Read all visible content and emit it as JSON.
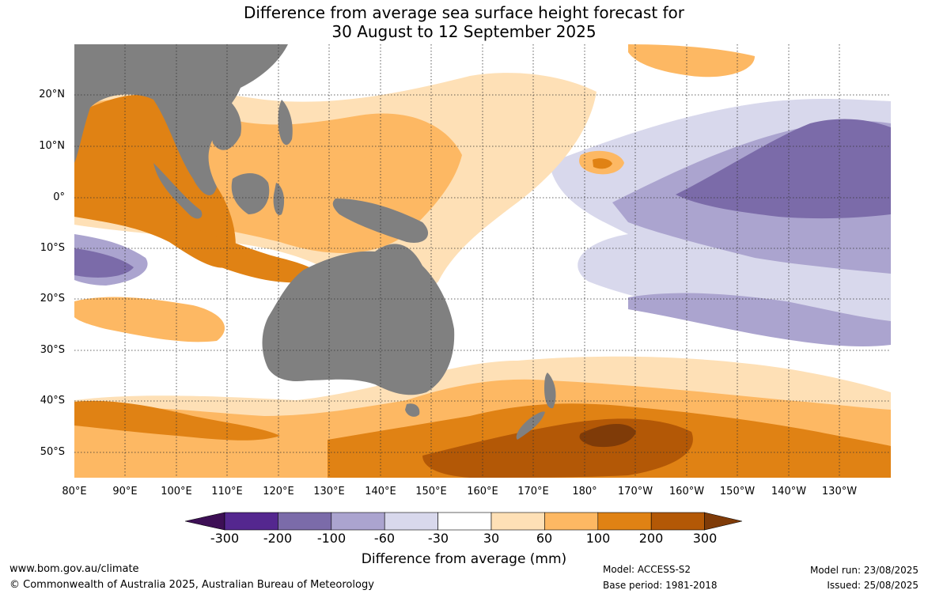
{
  "title": {
    "line1": "Difference from average sea surface height forecast for",
    "line2": "30 August to 12 September 2025"
  },
  "lat_labels": [
    "20°N",
    "10°N",
    "0°",
    "10°S",
    "20°S",
    "30°S",
    "40°S",
    "50°S"
  ],
  "lon_labels": [
    "80°E",
    "90°E",
    "100°E",
    "110°E",
    "120°E",
    "130°E",
    "140°E",
    "150°E",
    "160°E",
    "170°E",
    "180°",
    "170°W",
    "160°W",
    "150°W",
    "140°W",
    "130°W"
  ],
  "colorbar": {
    "ticks": [
      "-300",
      "-200",
      "-100",
      "-60",
      "-30",
      "30",
      "60",
      "100",
      "200",
      "300"
    ],
    "colors": [
      "#3d0f55",
      "#54278f",
      "#7b6ba9",
      "#aba4cf",
      "#d8d8ec",
      "#ffffff",
      "#fee0b6",
      "#fdb863",
      "#e08214",
      "#b35806",
      "#7f3b08"
    ],
    "label": "Difference from average (mm)"
  },
  "colors": {
    "land": "#808080",
    "neg_60": "#aba4cf",
    "neg_30": "#d8d8ec",
    "neg_100": "#7b6ba9",
    "neg_200": "#54278f",
    "pos_30": "#fee0b6",
    "pos_60": "#fdb863",
    "pos_100": "#e08214",
    "pos_200": "#b35806",
    "pos_300": "#7f3b08"
  },
  "footer": {
    "website": "www.bom.gov.au/climate",
    "copyright": "© Commonwealth of Australia 2025, Australian Bureau of Meteorology",
    "model": "Model: ACCESS-S2",
    "base_period": "Base period: 1981-2018",
    "model_run": "Model run: 23/08/2025",
    "issued": "Issued: 25/08/2025"
  }
}
